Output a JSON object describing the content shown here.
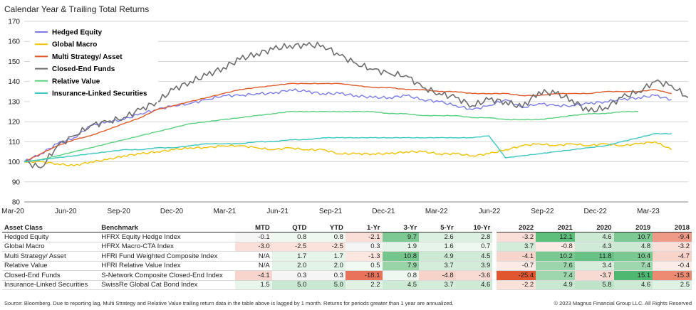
{
  "title": "Calendar Year & Trailing Total Returns",
  "chart_data": {
    "type": "line",
    "ylim": [
      80,
      170
    ],
    "yticks": [
      80,
      90,
      100,
      110,
      120,
      130,
      140,
      150,
      160,
      170
    ],
    "xticks": [
      "Mar-20",
      "Jun-20",
      "Sep-20",
      "Dec-20",
      "Mar-21",
      "Jun-21",
      "Sep-21",
      "Dec-21",
      "Mar-22",
      "Jun-22",
      "Sep-22",
      "Dec-22",
      "Mar-23"
    ],
    "grid": "horizontal",
    "legend_position": "top-left",
    "series": [
      {
        "name": "Hedged Equity",
        "color": "#7b7bea",
        "points": [
          [
            0,
            100
          ],
          [
            1,
            104
          ],
          [
            2,
            109
          ],
          [
            3,
            112
          ],
          [
            4,
            118
          ],
          [
            5,
            120
          ],
          [
            6,
            121
          ],
          [
            7,
            124
          ],
          [
            8,
            126
          ],
          [
            9,
            128
          ],
          [
            10,
            129
          ],
          [
            11,
            131
          ],
          [
            12,
            133
          ],
          [
            13,
            133
          ],
          [
            14,
            134
          ],
          [
            15,
            134
          ],
          [
            16,
            136
          ],
          [
            17,
            135
          ],
          [
            18,
            134
          ],
          [
            19,
            134
          ],
          [
            20,
            133
          ],
          [
            21,
            132
          ],
          [
            22,
            132
          ],
          [
            23,
            133
          ],
          [
            24,
            131
          ],
          [
            25,
            130
          ],
          [
            26,
            128
          ],
          [
            27,
            126
          ],
          [
            28,
            128
          ],
          [
            29,
            131
          ],
          [
            30,
            127
          ],
          [
            31,
            129
          ],
          [
            32,
            128
          ],
          [
            33,
            128
          ],
          [
            34,
            129
          ],
          [
            35,
            130
          ],
          [
            36,
            131
          ],
          [
            37,
            132
          ],
          [
            38,
            133
          ],
          [
            39,
            131
          ]
        ]
      },
      {
        "name": "Global Macro",
        "color": "#f2c200",
        "points": [
          [
            0,
            100
          ],
          [
            1,
            100
          ],
          [
            2,
            99
          ],
          [
            3,
            98
          ],
          [
            4,
            100
          ],
          [
            5,
            101
          ],
          [
            6,
            103
          ],
          [
            7,
            104
          ],
          [
            8,
            105
          ],
          [
            9,
            106
          ],
          [
            10,
            107
          ],
          [
            11,
            107
          ],
          [
            12,
            108
          ],
          [
            13,
            108
          ],
          [
            14,
            107
          ],
          [
            15,
            106
          ],
          [
            16,
            107
          ],
          [
            17,
            106
          ],
          [
            18,
            106
          ],
          [
            19,
            104
          ],
          [
            20,
            104
          ],
          [
            21,
            104
          ],
          [
            22,
            104
          ],
          [
            23,
            105
          ],
          [
            24,
            105
          ],
          [
            25,
            104
          ],
          [
            26,
            104
          ],
          [
            27,
            103
          ],
          [
            28,
            104
          ],
          [
            29,
            106
          ],
          [
            30,
            108
          ],
          [
            31,
            109
          ],
          [
            32,
            108
          ],
          [
            33,
            109
          ],
          [
            34,
            108
          ],
          [
            35,
            109
          ],
          [
            36,
            108
          ],
          [
            37,
            109
          ],
          [
            38,
            110
          ],
          [
            39,
            106
          ]
        ]
      },
      {
        "name": "Multi Strategy/ Asset",
        "color": "#e05a2b",
        "points": [
          [
            0,
            100
          ],
          [
            1,
            104
          ],
          [
            2,
            108
          ],
          [
            3,
            111
          ],
          [
            4,
            113
          ],
          [
            5,
            116
          ],
          [
            6,
            119
          ],
          [
            7,
            122
          ],
          [
            8,
            126
          ],
          [
            9,
            128
          ],
          [
            10,
            130
          ],
          [
            11,
            132
          ],
          [
            12,
            134
          ],
          [
            13,
            136
          ],
          [
            14,
            137
          ],
          [
            15,
            138
          ],
          [
            16,
            139
          ],
          [
            17,
            139
          ],
          [
            18,
            139
          ],
          [
            19,
            139
          ],
          [
            20,
            138
          ],
          [
            21,
            137
          ],
          [
            22,
            137
          ],
          [
            23,
            136
          ],
          [
            24,
            136
          ],
          [
            25,
            135
          ],
          [
            26,
            135
          ],
          [
            27,
            134
          ],
          [
            28,
            134
          ],
          [
            29,
            134
          ],
          [
            30,
            133
          ],
          [
            31,
            133
          ],
          [
            32,
            134
          ],
          [
            33,
            134
          ],
          [
            34,
            134
          ],
          [
            35,
            135
          ],
          [
            36,
            135
          ],
          [
            37,
            135
          ],
          [
            38,
            136
          ],
          [
            39,
            134
          ]
        ]
      },
      {
        "name": "Closed-End Funds",
        "color": "#6d6d6d",
        "points": [
          [
            0,
            100
          ],
          [
            1,
            97
          ],
          [
            2,
            108
          ],
          [
            3,
            113
          ],
          [
            4,
            118
          ],
          [
            5,
            120
          ],
          [
            6,
            122
          ],
          [
            7,
            126
          ],
          [
            8,
            130
          ],
          [
            9,
            136
          ],
          [
            10,
            140
          ],
          [
            11,
            143
          ],
          [
            12,
            147
          ],
          [
            13,
            151
          ],
          [
            14,
            154
          ],
          [
            15,
            156
          ],
          [
            16,
            158
          ],
          [
            17,
            158
          ],
          [
            18,
            158
          ],
          [
            19,
            153
          ],
          [
            20,
            149
          ],
          [
            21,
            146
          ],
          [
            22,
            144
          ],
          [
            23,
            143
          ],
          [
            24,
            137
          ],
          [
            25,
            134
          ],
          [
            26,
            132
          ],
          [
            27,
            128
          ],
          [
            28,
            131
          ],
          [
            29,
            130
          ],
          [
            30,
            127
          ],
          [
            31,
            135
          ],
          [
            32,
            134
          ],
          [
            33,
            131
          ],
          [
            34,
            125
          ],
          [
            35,
            127
          ],
          [
            36,
            132
          ],
          [
            37,
            135
          ],
          [
            38,
            140
          ],
          [
            39,
            138
          ],
          [
            40,
            132
          ]
        ]
      },
      {
        "name": "Relative Value",
        "color": "#5ad17f",
        "points": [
          [
            0,
            100
          ],
          [
            1,
            101
          ],
          [
            2,
            103
          ],
          [
            3,
            105
          ],
          [
            4,
            107
          ],
          [
            5,
            109
          ],
          [
            6,
            111
          ],
          [
            7,
            113
          ],
          [
            8,
            115
          ],
          [
            9,
            117
          ],
          [
            10,
            119
          ],
          [
            11,
            120
          ],
          [
            12,
            121
          ],
          [
            13,
            122
          ],
          [
            14,
            123
          ],
          [
            15,
            124
          ],
          [
            16,
            125
          ],
          [
            17,
            125
          ],
          [
            18,
            125
          ],
          [
            19,
            125
          ],
          [
            20,
            125
          ],
          [
            21,
            125
          ],
          [
            22,
            124
          ],
          [
            23,
            124
          ],
          [
            24,
            123
          ],
          [
            25,
            123
          ],
          [
            26,
            123
          ],
          [
            27,
            122
          ],
          [
            28,
            122
          ],
          [
            29,
            121
          ],
          [
            30,
            121
          ],
          [
            31,
            121
          ],
          [
            32,
            122
          ],
          [
            33,
            123
          ],
          [
            34,
            124
          ],
          [
            35,
            124
          ],
          [
            36,
            125
          ],
          [
            37,
            125
          ]
        ]
      },
      {
        "name": "Insurance-Linked Securities",
        "color": "#3cc7c0",
        "points": [
          [
            0,
            100
          ],
          [
            1,
            101
          ],
          [
            2,
            102
          ],
          [
            3,
            103
          ],
          [
            4,
            104
          ],
          [
            5,
            105
          ],
          [
            6,
            106
          ],
          [
            7,
            106
          ],
          [
            8,
            107
          ],
          [
            9,
            107
          ],
          [
            10,
            108
          ],
          [
            11,
            109
          ],
          [
            12,
            109
          ],
          [
            13,
            109
          ],
          [
            14,
            110
          ],
          [
            15,
            110
          ],
          [
            16,
            111
          ],
          [
            17,
            111
          ],
          [
            18,
            112
          ],
          [
            19,
            112
          ],
          [
            20,
            112
          ],
          [
            21,
            112
          ],
          [
            22,
            112
          ],
          [
            23,
            112
          ],
          [
            24,
            112
          ],
          [
            25,
            112
          ],
          [
            26,
            112
          ],
          [
            27,
            112
          ],
          [
            28,
            113
          ],
          [
            29,
            102
          ],
          [
            30,
            103
          ],
          [
            31,
            104
          ],
          [
            32,
            105
          ],
          [
            33,
            106
          ],
          [
            34,
            107
          ],
          [
            35,
            108
          ],
          [
            36,
            110
          ],
          [
            37,
            112
          ],
          [
            38,
            114
          ],
          [
            39,
            114
          ]
        ]
      }
    ]
  },
  "table": {
    "headers": [
      "Asset Class",
      "Benchmark",
      "MTD",
      "QTD",
      "YTD",
      "1-Yr",
      "3-Yr",
      "5-Yr",
      "10-Yr",
      "2022",
      "2021",
      "2020",
      "2019",
      "2018"
    ],
    "rows": [
      {
        "cells": [
          "Hedged Equity",
          "HFRX Equity Hedge Index",
          "-0.1",
          "0.8",
          "0.8",
          "-2.1",
          "9.7",
          "2.6",
          "2.8",
          "-3.2",
          "12.1",
          "4.6",
          "10.7",
          "-9.4"
        ],
        "colors": [
          "",
          "",
          "#f5f5f5",
          "#eef7f0",
          "#eef7f0",
          "#fadfd8",
          "#7cc993",
          "#dcf0e1",
          "#dcf0e1",
          "#fadfd8",
          "#5ebe7c",
          "#cce9d4",
          "#7cc993",
          "#ef9a86"
        ]
      },
      {
        "cells": [
          "Global  Macro",
          "HFRX Macro-CTA Index",
          "-3.0",
          "-2.5",
          "-2.5",
          "0.3",
          "1.9",
          "1.6",
          "0.7",
          "3.7",
          "-0.8",
          "4.3",
          "4.8",
          "-3.2"
        ],
        "colors": [
          "",
          "",
          "#fadfd8",
          "#fbe3dc",
          "#fbe3dc",
          "#f5f5f5",
          "#e3f3e7",
          "#e6f4e9",
          "#eef7f0",
          "#d2ecd9",
          "#fbe9e4",
          "#cfead7",
          "#cbe9d3",
          "#fadfd8"
        ]
      },
      {
        "cells": [
          "Multi Strategy/ Asset",
          "HFRI Fund Weighted Composite Index",
          "N/A",
          "1.7",
          "1.7",
          "-1.3",
          "10.8",
          "4.9",
          "4.5",
          "-4.1",
          "10.2",
          "11.8",
          "10.4",
          "-4.7"
        ],
        "colors": [
          "",
          "",
          "",
          "#e6f4e9",
          "#e6f4e9",
          "#fbe6e0",
          "#74c68d",
          "#cbe9d3",
          "#cfead7",
          "#f8d5cc",
          "#79c890",
          "#68c185",
          "#79c890",
          "#f8d3c9"
        ]
      },
      {
        "cells": [
          "Relative Value",
          "HFRI Relative Value Index",
          "N/A",
          "2.0",
          "2.0",
          "0.5",
          "7.9",
          "3.7",
          "3.9",
          "-0.7",
          "7.6",
          "3.4",
          "7.4",
          "-0.4"
        ],
        "colors": [
          "",
          "",
          "",
          "#e3f3e7",
          "#e3f3e7",
          "#f1f9f3",
          "#99d4a9",
          "#d4edda",
          "#d2ecd9",
          "#fbeae5",
          "#9cd5ac",
          "#d6eddc",
          "#9ed6ad",
          "#fbece8"
        ]
      },
      {
        "cells": [
          "Closed-End Funds",
          "S-Network Composite Closed-End Index",
          "-4.1",
          "0.3",
          "0.3",
          "-18.1",
          "0.8",
          "-4.8",
          "-3.6",
          "-25.4",
          "7.4",
          "-3.7",
          "15.1",
          "-15.3"
        ],
        "colors": [
          "",
          "",
          "#f8d5cc",
          "#f5f5f5",
          "#f5f5f5",
          "#e8735a",
          "#eef7f0",
          "#f7d2c8",
          "#f9dbd3",
          "#e2562f",
          "#9ed6ad",
          "#f9dad2",
          "#4fb870",
          "#ec8a72"
        ]
      },
      {
        "cells": [
          "Insurance-Linked Securities",
          "SwissRe Global Cat Bond Index",
          "1.5",
          "5.0",
          "5.0",
          "2.2",
          "4.5",
          "3.7",
          "4.6",
          "-2.2",
          "4.9",
          "5.8",
          "4.6",
          "2.5"
        ],
        "colors": [
          "",
          "",
          "#e8f5eb",
          "#c9e8d1",
          "#c9e8d1",
          "#e1f2e5",
          "#cdead5",
          "#d4edda",
          "#cdead5",
          "#fae1da",
          "#c9e8d1",
          "#c0e4ca",
          "#cdead5",
          "#dff2e4"
        ]
      }
    ]
  },
  "footer": {
    "left": "Source: Bloomberg. Due to reporting lag, Multi Strategy and Relative Value trailing return data in the table above is lagged by 1 month. Returns for periods greater than 1 year are annualized.",
    "right": "© 2023 Magnus Financial Group LLC. All Rights Reserved"
  }
}
